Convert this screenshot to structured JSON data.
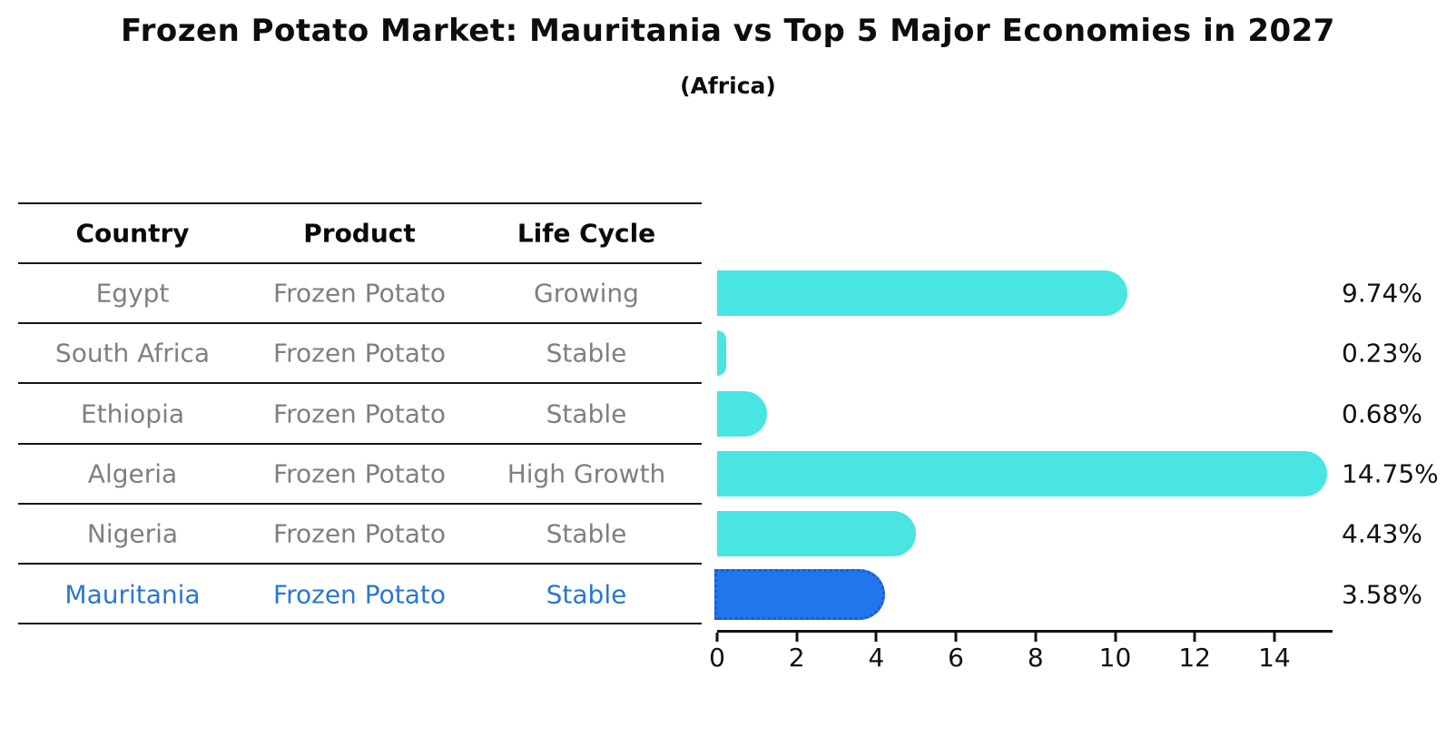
{
  "title": "Frozen Potato Market: Mauritania vs Top 5 Major Economies in 2027",
  "subtitle": "(Africa)",
  "table": {
    "headers": [
      "Country",
      "Product",
      "Life Cycle"
    ],
    "rows": [
      {
        "country": "Egypt",
        "product": "Frozen Potato",
        "life_cycle": "Growing",
        "highlighted": false
      },
      {
        "country": "South Africa",
        "product": "Frozen Potato",
        "life_cycle": "Stable",
        "highlighted": false
      },
      {
        "country": "Ethiopia",
        "product": "Frozen Potato",
        "life_cycle": "Stable",
        "highlighted": false
      },
      {
        "country": "Algeria",
        "product": "Frozen Potato",
        "life_cycle": "High Growth",
        "highlighted": false
      },
      {
        "country": "Nigeria",
        "product": "Frozen Potato",
        "life_cycle": "Stable",
        "highlighted": false
      },
      {
        "country": "Mauritania",
        "product": "Frozen Potato",
        "life_cycle": "Stable",
        "highlighted": true
      }
    ]
  },
  "chart_data": {
    "type": "bar",
    "orientation": "horizontal",
    "title": "Frozen Potato Market: Mauritania vs Top 5 Major Economies in 2027",
    "subtitle": "(Africa)",
    "categories": [
      "Egypt",
      "South Africa",
      "Ethiopia",
      "Algeria",
      "Nigeria",
      "Mauritania"
    ],
    "values": [
      9.74,
      0.23,
      0.68,
      14.75,
      4.43,
      3.58
    ],
    "value_labels": [
      "9.74%",
      "0.23%",
      "0.68%",
      "14.75%",
      "4.43%",
      "3.58%"
    ],
    "x_ticks": [
      0,
      2,
      4,
      6,
      8,
      10,
      12,
      14
    ],
    "xlim": [
      0,
      15.5
    ],
    "grid": false,
    "legend": "none",
    "bar_color": "#48e5e2",
    "highlight_index": 5,
    "highlight_color": "#2176eb",
    "highlight_border_color": "#1b5bd6",
    "highlight_text_color": "#2878ce",
    "row_text_color": "#7f7f7f",
    "axis_color": "#111111"
  }
}
